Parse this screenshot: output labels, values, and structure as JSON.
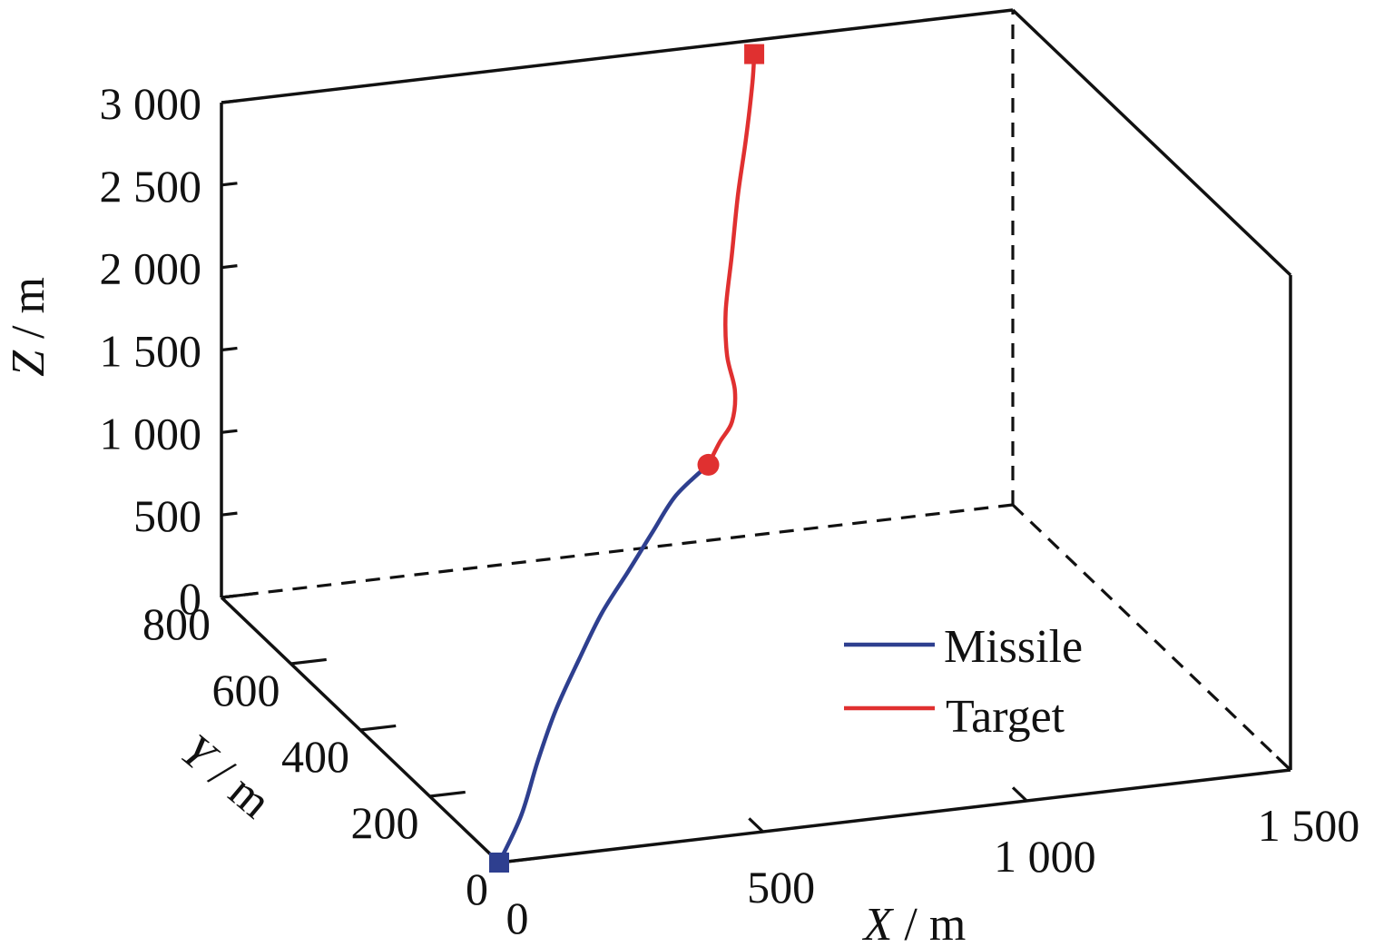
{
  "chart_data": {
    "type": "line",
    "dimensions": 3,
    "title": "",
    "xlabel": {
      "var": "X",
      "unit": " / m"
    },
    "ylabel": {
      "var": "Y",
      "unit": " / m"
    },
    "zlabel": {
      "var": "Z",
      "unit": " / m"
    },
    "xlim": [
      0,
      1500
    ],
    "ylim": [
      0,
      800
    ],
    "zlim": [
      0,
      3000
    ],
    "x_ticks": [
      {
        "value": 0,
        "label": "0"
      },
      {
        "value": 500,
        "label": "500"
      },
      {
        "value": 1000,
        "label": "1 000"
      },
      {
        "value": 1500,
        "label": "1 500"
      }
    ],
    "y_ticks": [
      {
        "value": 0,
        "label": "0"
      },
      {
        "value": 200,
        "label": "200"
      },
      {
        "value": 400,
        "label": "400"
      },
      {
        "value": 600,
        "label": "600"
      },
      {
        "value": 800,
        "label": "800"
      }
    ],
    "z_ticks": [
      {
        "value": 0,
        "label": "0"
      },
      {
        "value": 500,
        "label": "500"
      },
      {
        "value": 1000,
        "label": "1 000"
      },
      {
        "value": 1500,
        "label": "1 500"
      },
      {
        "value": 2000,
        "label": "2 000"
      },
      {
        "value": 2500,
        "label": "2 500"
      },
      {
        "value": 3000,
        "label": "3 000"
      }
    ],
    "grid": false,
    "legend_position": "bottom-right",
    "series": [
      {
        "name": "Missile",
        "color": "#2e3f8f",
        "start_marker": "square",
        "points": [
          {
            "x": 0,
            "y": 0,
            "z": 0
          },
          {
            "x": 92,
            "y": 76,
            "z": 100
          },
          {
            "x": 188,
            "y": 175,
            "z": 190
          },
          {
            "x": 280,
            "y": 262,
            "z": 295
          },
          {
            "x": 372,
            "y": 335,
            "z": 420
          },
          {
            "x": 455,
            "y": 396,
            "z": 545
          },
          {
            "x": 538,
            "y": 445,
            "z": 672
          },
          {
            "x": 610,
            "y": 487,
            "z": 790
          },
          {
            "x": 684,
            "y": 530,
            "z": 905
          },
          {
            "x": 765,
            "y": 560,
            "z": 1000
          }
        ]
      },
      {
        "name": "Target",
        "color": "#e03030",
        "start_marker": "square",
        "end_marker": "circle",
        "points": [
          {
            "x": 1000,
            "y": 785,
            "z": 2950
          },
          {
            "x": 990,
            "y": 775,
            "z": 2800
          },
          {
            "x": 968,
            "y": 760,
            "z": 2500
          },
          {
            "x": 943,
            "y": 745,
            "z": 2200
          },
          {
            "x": 915,
            "y": 720,
            "z": 1900
          },
          {
            "x": 890,
            "y": 700,
            "z": 1600
          },
          {
            "x": 873,
            "y": 670,
            "z": 1400
          },
          {
            "x": 868,
            "y": 640,
            "z": 1250
          },
          {
            "x": 846,
            "y": 615,
            "z": 1120
          },
          {
            "x": 806,
            "y": 590,
            "z": 1060
          },
          {
            "x": 765,
            "y": 560,
            "z": 1000
          }
        ]
      }
    ]
  }
}
